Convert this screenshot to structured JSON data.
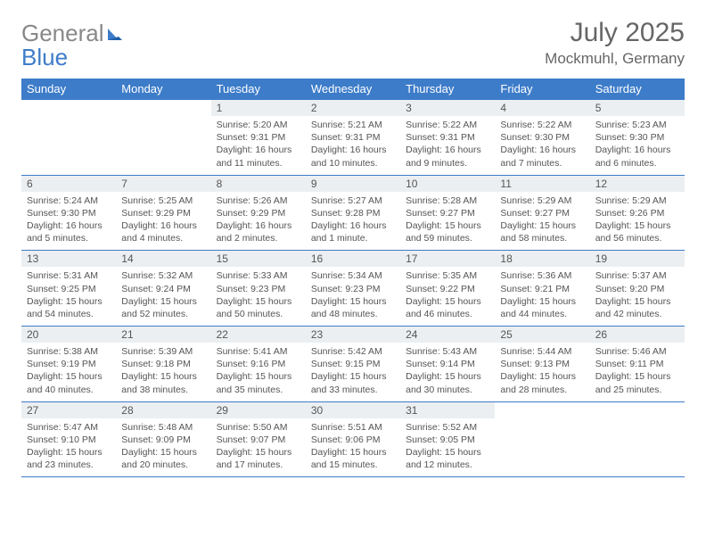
{
  "logo": {
    "word1": "General",
    "word2": "Blue"
  },
  "title": "July 2025",
  "location": "Mockmuhl, Germany",
  "colors": {
    "header_bg": "#3d7cc9",
    "header_text": "#ffffff",
    "daynum_bg": "#eceff1",
    "cell_border": "#3d7cc9",
    "body_text": "#555555",
    "title_text": "#666666",
    "logo_gray": "#888888",
    "logo_blue": "#3d7cc9",
    "page_bg": "#ffffff"
  },
  "dow": [
    "Sunday",
    "Monday",
    "Tuesday",
    "Wednesday",
    "Thursday",
    "Friday",
    "Saturday"
  ],
  "weeks": [
    [
      {
        "n": "",
        "sr": "",
        "ss": "",
        "dl": ""
      },
      {
        "n": "",
        "sr": "",
        "ss": "",
        "dl": ""
      },
      {
        "n": "1",
        "sr": "5:20 AM",
        "ss": "9:31 PM",
        "dl": "16 hours and 11 minutes."
      },
      {
        "n": "2",
        "sr": "5:21 AM",
        "ss": "9:31 PM",
        "dl": "16 hours and 10 minutes."
      },
      {
        "n": "3",
        "sr": "5:22 AM",
        "ss": "9:31 PM",
        "dl": "16 hours and 9 minutes."
      },
      {
        "n": "4",
        "sr": "5:22 AM",
        "ss": "9:30 PM",
        "dl": "16 hours and 7 minutes."
      },
      {
        "n": "5",
        "sr": "5:23 AM",
        "ss": "9:30 PM",
        "dl": "16 hours and 6 minutes."
      }
    ],
    [
      {
        "n": "6",
        "sr": "5:24 AM",
        "ss": "9:30 PM",
        "dl": "16 hours and 5 minutes."
      },
      {
        "n": "7",
        "sr": "5:25 AM",
        "ss": "9:29 PM",
        "dl": "16 hours and 4 minutes."
      },
      {
        "n": "8",
        "sr": "5:26 AM",
        "ss": "9:29 PM",
        "dl": "16 hours and 2 minutes."
      },
      {
        "n": "9",
        "sr": "5:27 AM",
        "ss": "9:28 PM",
        "dl": "16 hours and 1 minute."
      },
      {
        "n": "10",
        "sr": "5:28 AM",
        "ss": "9:27 PM",
        "dl": "15 hours and 59 minutes."
      },
      {
        "n": "11",
        "sr": "5:29 AM",
        "ss": "9:27 PM",
        "dl": "15 hours and 58 minutes."
      },
      {
        "n": "12",
        "sr": "5:29 AM",
        "ss": "9:26 PM",
        "dl": "15 hours and 56 minutes."
      }
    ],
    [
      {
        "n": "13",
        "sr": "5:31 AM",
        "ss": "9:25 PM",
        "dl": "15 hours and 54 minutes."
      },
      {
        "n": "14",
        "sr": "5:32 AM",
        "ss": "9:24 PM",
        "dl": "15 hours and 52 minutes."
      },
      {
        "n": "15",
        "sr": "5:33 AM",
        "ss": "9:23 PM",
        "dl": "15 hours and 50 minutes."
      },
      {
        "n": "16",
        "sr": "5:34 AM",
        "ss": "9:23 PM",
        "dl": "15 hours and 48 minutes."
      },
      {
        "n": "17",
        "sr": "5:35 AM",
        "ss": "9:22 PM",
        "dl": "15 hours and 46 minutes."
      },
      {
        "n": "18",
        "sr": "5:36 AM",
        "ss": "9:21 PM",
        "dl": "15 hours and 44 minutes."
      },
      {
        "n": "19",
        "sr": "5:37 AM",
        "ss": "9:20 PM",
        "dl": "15 hours and 42 minutes."
      }
    ],
    [
      {
        "n": "20",
        "sr": "5:38 AM",
        "ss": "9:19 PM",
        "dl": "15 hours and 40 minutes."
      },
      {
        "n": "21",
        "sr": "5:39 AM",
        "ss": "9:18 PM",
        "dl": "15 hours and 38 minutes."
      },
      {
        "n": "22",
        "sr": "5:41 AM",
        "ss": "9:16 PM",
        "dl": "15 hours and 35 minutes."
      },
      {
        "n": "23",
        "sr": "5:42 AM",
        "ss": "9:15 PM",
        "dl": "15 hours and 33 minutes."
      },
      {
        "n": "24",
        "sr": "5:43 AM",
        "ss": "9:14 PM",
        "dl": "15 hours and 30 minutes."
      },
      {
        "n": "25",
        "sr": "5:44 AM",
        "ss": "9:13 PM",
        "dl": "15 hours and 28 minutes."
      },
      {
        "n": "26",
        "sr": "5:46 AM",
        "ss": "9:11 PM",
        "dl": "15 hours and 25 minutes."
      }
    ],
    [
      {
        "n": "27",
        "sr": "5:47 AM",
        "ss": "9:10 PM",
        "dl": "15 hours and 23 minutes."
      },
      {
        "n": "28",
        "sr": "5:48 AM",
        "ss": "9:09 PM",
        "dl": "15 hours and 20 minutes."
      },
      {
        "n": "29",
        "sr": "5:50 AM",
        "ss": "9:07 PM",
        "dl": "15 hours and 17 minutes."
      },
      {
        "n": "30",
        "sr": "5:51 AM",
        "ss": "9:06 PM",
        "dl": "15 hours and 15 minutes."
      },
      {
        "n": "31",
        "sr": "5:52 AM",
        "ss": "9:05 PM",
        "dl": "15 hours and 12 minutes."
      },
      {
        "n": "",
        "sr": "",
        "ss": "",
        "dl": ""
      },
      {
        "n": "",
        "sr": "",
        "ss": "",
        "dl": ""
      }
    ]
  ],
  "labels": {
    "sunrise": "Sunrise:",
    "sunset": "Sunset:",
    "daylight": "Daylight:"
  }
}
